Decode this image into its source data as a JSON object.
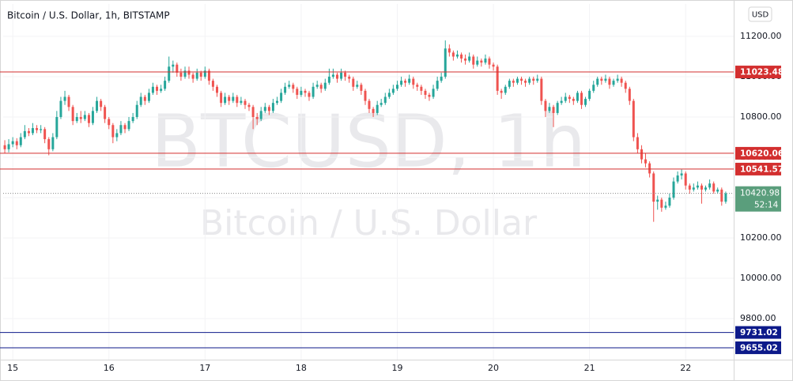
{
  "chart_data": {
    "type": "candlestick",
    "title": "Bitcoin / U.S. Dollar, 1h, BITSTAMP",
    "currency": "USD",
    "watermark": "BTCUSD, 1h",
    "watermark_subtitle": "Bitcoin / U.S. Dollar",
    "up_color": "#26a69a",
    "down_color": "#ef5350",
    "grid": true,
    "xlim": [
      14.9,
      22.5
    ],
    "ylim": [
      9596,
      11361
    ],
    "xticks": [
      15,
      16,
      17,
      18,
      19,
      20,
      21,
      22
    ],
    "yticks": [
      {
        "value": 9800,
        "label": "9800.00"
      },
      {
        "value": 10000,
        "label": "10000.00"
      },
      {
        "value": 10200,
        "label": "10200.00"
      },
      {
        "value": 10400,
        "label": "10400.00"
      },
      {
        "value": 10600,
        "label": "10600.00"
      },
      {
        "value": 10800,
        "label": "10800.00"
      },
      {
        "value": 11000,
        "label": "11000.00"
      },
      {
        "value": 11200,
        "label": "11200.00"
      }
    ],
    "levels": [
      {
        "value": 11023.48,
        "color": "#d32f2f"
      },
      {
        "value": 10620.06,
        "color": "#d32f2f"
      },
      {
        "value": 10541.57,
        "color": "#d32f2f"
      },
      {
        "value": 9731.02,
        "color": "#0d1a8a"
      },
      {
        "value": 9655.02,
        "color": "#0d1a8a"
      }
    ],
    "last": {
      "value": 10420.98,
      "color": "#5a9e7c"
    },
    "countdown": "52:14",
    "x": [
      14.917,
      14.958,
      15,
      15.042,
      15.083,
      15.125,
      15.167,
      15.208,
      15.25,
      15.292,
      15.333,
      15.375,
      15.417,
      15.458,
      15.5,
      15.542,
      15.583,
      15.625,
      15.667,
      15.708,
      15.75,
      15.792,
      15.833,
      15.875,
      15.917,
      15.958,
      16,
      16.042,
      16.083,
      16.125,
      16.167,
      16.208,
      16.25,
      16.292,
      16.333,
      16.375,
      16.417,
      16.458,
      16.5,
      16.542,
      16.583,
      16.625,
      16.667,
      16.708,
      16.75,
      16.792,
      16.833,
      16.875,
      16.917,
      16.958,
      17,
      17.042,
      17.083,
      17.125,
      17.167,
      17.208,
      17.25,
      17.292,
      17.333,
      17.375,
      17.417,
      17.458,
      17.5,
      17.542,
      17.583,
      17.625,
      17.667,
      17.708,
      17.75,
      17.792,
      17.833,
      17.875,
      17.917,
      17.958,
      18,
      18.042,
      18.083,
      18.125,
      18.167,
      18.208,
      18.25,
      18.292,
      18.333,
      18.375,
      18.417,
      18.458,
      18.5,
      18.542,
      18.583,
      18.625,
      18.667,
      18.708,
      18.75,
      18.792,
      18.833,
      18.875,
      18.917,
      18.958,
      19,
      19.042,
      19.083,
      19.125,
      19.167,
      19.208,
      19.25,
      19.292,
      19.333,
      19.375,
      19.417,
      19.458,
      19.5,
      19.542,
      19.583,
      19.625,
      19.667,
      19.708,
      19.75,
      19.792,
      19.833,
      19.875,
      19.917,
      19.958,
      20,
      20.042,
      20.083,
      20.125,
      20.167,
      20.208,
      20.25,
      20.292,
      20.333,
      20.375,
      20.417,
      20.458,
      20.5,
      20.542,
      20.583,
      20.625,
      20.667,
      20.708,
      20.75,
      20.792,
      20.833,
      20.875,
      20.917,
      20.958,
      21,
      21.042,
      21.083,
      21.125,
      21.167,
      21.208,
      21.25,
      21.292,
      21.333,
      21.375,
      21.417,
      21.458,
      21.5,
      21.542,
      21.583,
      21.625,
      21.667,
      21.708,
      21.75,
      21.792,
      21.833,
      21.875,
      21.917,
      21.958,
      22,
      22.042,
      22.083,
      22.125,
      22.167,
      22.208,
      22.25,
      22.292,
      22.333,
      22.375,
      22.417
    ],
    "candles": [
      [
        10660,
        10685,
        10620,
        10640
      ],
      [
        10640,
        10690,
        10625,
        10665
      ],
      [
        10665,
        10700,
        10650,
        10680
      ],
      [
        10680,
        10695,
        10640,
        10660
      ],
      [
        10660,
        10720,
        10650,
        10700
      ],
      [
        10700,
        10760,
        10690,
        10730
      ],
      [
        10730,
        10745,
        10705,
        10720
      ],
      [
        10720,
        10770,
        10710,
        10745
      ],
      [
        10745,
        10760,
        10720,
        10735
      ],
      [
        10735,
        10760,
        10720,
        10740
      ],
      [
        10740,
        10750,
        10670,
        10690
      ],
      [
        10690,
        10700,
        10610,
        10640
      ],
      [
        10640,
        10720,
        10630,
        10700
      ],
      [
        10700,
        10830,
        10690,
        10800
      ],
      [
        10800,
        10900,
        10790,
        10880
      ],
      [
        10880,
        10930,
        10860,
        10900
      ],
      [
        10900,
        10910,
        10830,
        10850
      ],
      [
        10850,
        10860,
        10760,
        10780
      ],
      [
        10780,
        10820,
        10770,
        10800
      ],
      [
        10800,
        10830,
        10770,
        10790
      ],
      [
        10790,
        10830,
        10780,
        10810
      ],
      [
        10810,
        10820,
        10750,
        10770
      ],
      [
        10770,
        10850,
        10760,
        10830
      ],
      [
        10830,
        10900,
        10820,
        10880
      ],
      [
        10880,
        10890,
        10830,
        10850
      ],
      [
        10850,
        10860,
        10770,
        10790
      ],
      [
        10790,
        10800,
        10740,
        10760
      ],
      [
        10760,
        10770,
        10670,
        10700
      ],
      [
        10700,
        10740,
        10680,
        10720
      ],
      [
        10720,
        10780,
        10710,
        10760
      ],
      [
        10760,
        10770,
        10720,
        10740
      ],
      [
        10740,
        10800,
        10730,
        10780
      ],
      [
        10780,
        10820,
        10770,
        10800
      ],
      [
        10800,
        10880,
        10790,
        10860
      ],
      [
        10860,
        10920,
        10850,
        10900
      ],
      [
        10900,
        10910,
        10860,
        10880
      ],
      [
        10880,
        10940,
        10870,
        10920
      ],
      [
        10920,
        10970,
        10910,
        10950
      ],
      [
        10950,
        10960,
        10910,
        10930
      ],
      [
        10930,
        10960,
        10920,
        10940
      ],
      [
        10940,
        11000,
        10930,
        10980
      ],
      [
        10980,
        11100,
        10970,
        11050
      ],
      [
        11050,
        11080,
        11020,
        11060
      ],
      [
        11060,
        11070,
        11000,
        11020
      ],
      [
        11020,
        11040,
        10980,
        11000
      ],
      [
        11000,
        11050,
        10990,
        11030
      ],
      [
        11030,
        11050,
        10990,
        11010
      ],
      [
        11010,
        11020,
        10970,
        10990
      ],
      [
        10990,
        11040,
        10980,
        11020
      ],
      [
        11020,
        11030,
        10980,
        11000
      ],
      [
        11000,
        11050,
        10990,
        11030
      ],
      [
        11030,
        11040,
        10960,
        10980
      ],
      [
        10980,
        10990,
        10930,
        10950
      ],
      [
        10950,
        10960,
        10900,
        10920
      ],
      [
        10920,
        10930,
        10850,
        10870
      ],
      [
        10870,
        10920,
        10860,
        10900
      ],
      [
        10900,
        10910,
        10860,
        10880
      ],
      [
        10880,
        10920,
        10870,
        10900
      ],
      [
        10900,
        10910,
        10850,
        10870
      ],
      [
        10870,
        10900,
        10860,
        10880
      ],
      [
        10880,
        10890,
        10840,
        10860
      ],
      [
        10860,
        10870,
        10830,
        10850
      ],
      [
        10850,
        10860,
        10740,
        10800
      ],
      [
        10800,
        10820,
        10760,
        10790
      ],
      [
        10790,
        10850,
        10780,
        10830
      ],
      [
        10830,
        10870,
        10820,
        10850
      ],
      [
        10850,
        10860,
        10810,
        10830
      ],
      [
        10830,
        10890,
        10820,
        10870
      ],
      [
        10870,
        10900,
        10860,
        10880
      ],
      [
        10880,
        10940,
        10870,
        10920
      ],
      [
        10920,
        10970,
        10910,
        10950
      ],
      [
        10950,
        10980,
        10940,
        10960
      ],
      [
        10960,
        10970,
        10920,
        10940
      ],
      [
        10940,
        10950,
        10890,
        10910
      ],
      [
        10910,
        10950,
        10900,
        10930
      ],
      [
        10930,
        10940,
        10900,
        10920
      ],
      [
        10920,
        10930,
        10880,
        10900
      ],
      [
        10900,
        10970,
        10890,
        10950
      ],
      [
        10950,
        10980,
        10940,
        10960
      ],
      [
        10960,
        10970,
        10920,
        10940
      ],
      [
        10940,
        10990,
        10930,
        10970
      ],
      [
        10970,
        11040,
        10960,
        11000
      ],
      [
        11000,
        11040,
        10990,
        11010
      ],
      [
        11010,
        11020,
        10970,
        10990
      ],
      [
        10990,
        11040,
        10980,
        11020
      ],
      [
        11020,
        11030,
        10980,
        11000
      ],
      [
        11000,
        11010,
        10970,
        10990
      ],
      [
        10990,
        11000,
        10930,
        10950
      ],
      [
        10950,
        10980,
        10940,
        10960
      ],
      [
        10960,
        10970,
        10910,
        10930
      ],
      [
        10930,
        10940,
        10860,
        10880
      ],
      [
        10880,
        10890,
        10820,
        10840
      ],
      [
        10840,
        10850,
        10800,
        10820
      ],
      [
        10820,
        10880,
        10810,
        10860
      ],
      [
        10860,
        10890,
        10850,
        10870
      ],
      [
        10870,
        10920,
        10860,
        10900
      ],
      [
        10900,
        10940,
        10890,
        10920
      ],
      [
        10920,
        10960,
        10910,
        10940
      ],
      [
        10940,
        10980,
        10930,
        10960
      ],
      [
        10960,
        11000,
        10950,
        10980
      ],
      [
        10980,
        10990,
        10950,
        10970
      ],
      [
        10970,
        11010,
        10960,
        10990
      ],
      [
        10990,
        11000,
        10940,
        10960
      ],
      [
        10960,
        10970,
        10930,
        10950
      ],
      [
        10950,
        10960,
        10910,
        10930
      ],
      [
        10930,
        10940,
        10890,
        10910
      ],
      [
        10910,
        10920,
        10880,
        10900
      ],
      [
        10900,
        10960,
        10890,
        10940
      ],
      [
        10940,
        11000,
        10930,
        10980
      ],
      [
        10980,
        11020,
        10970,
        11000
      ],
      [
        11000,
        11180,
        10990,
        11140
      ],
      [
        11140,
        11160,
        11100,
        11120
      ],
      [
        11120,
        11130,
        11080,
        11100
      ],
      [
        11100,
        11130,
        11090,
        11110
      ],
      [
        11110,
        11120,
        11070,
        11090
      ],
      [
        11090,
        11110,
        11060,
        11080
      ],
      [
        11080,
        11120,
        11070,
        11100
      ],
      [
        11100,
        11110,
        11040,
        11060
      ],
      [
        11060,
        11100,
        11050,
        11080
      ],
      [
        11080,
        11090,
        11050,
        11070
      ],
      [
        11070,
        11110,
        11060,
        11090
      ],
      [
        11090,
        11100,
        11040,
        11060
      ],
      [
        11060,
        11070,
        11030,
        11050
      ],
      [
        11050,
        11060,
        10910,
        10930
      ],
      [
        10930,
        10940,
        10890,
        10920
      ],
      [
        10920,
        10960,
        10910,
        10950
      ],
      [
        10950,
        10990,
        10940,
        10980
      ],
      [
        10980,
        10990,
        10950,
        10970
      ],
      [
        10970,
        11000,
        10960,
        10990
      ],
      [
        10990,
        11000,
        10960,
        10980
      ],
      [
        10980,
        10990,
        10950,
        10970
      ],
      [
        10970,
        11000,
        10960,
        10990
      ],
      [
        10990,
        11000,
        10960,
        10980
      ],
      [
        10980,
        11010,
        10970,
        10990
      ],
      [
        10990,
        11000,
        10860,
        10880
      ],
      [
        10880,
        10890,
        10800,
        10830
      ],
      [
        10830,
        10870,
        10820,
        10850
      ],
      [
        10850,
        10860,
        10750,
        10820
      ],
      [
        10820,
        10880,
        10810,
        10870
      ],
      [
        10870,
        10900,
        10860,
        10880
      ],
      [
        10880,
        10920,
        10870,
        10900
      ],
      [
        10900,
        10910,
        10870,
        10890
      ],
      [
        10890,
        10900,
        10860,
        10880
      ],
      [
        10880,
        10930,
        10870,
        10920
      ],
      [
        10920,
        10930,
        10840,
        10860
      ],
      [
        10860,
        10900,
        10850,
        10890
      ],
      [
        10890,
        10940,
        10880,
        10930
      ],
      [
        10930,
        10980,
        10920,
        10960
      ],
      [
        10960,
        11000,
        10950,
        10990
      ],
      [
        10990,
        11000,
        10960,
        10980
      ],
      [
        10980,
        11010,
        10970,
        10990
      ],
      [
        10990,
        11000,
        10940,
        10960
      ],
      [
        10960,
        10990,
        10950,
        10980
      ],
      [
        10980,
        11010,
        10970,
        10990
      ],
      [
        10990,
        11000,
        10950,
        10970
      ],
      [
        10970,
        10980,
        10920,
        10940
      ],
      [
        10940,
        10950,
        10860,
        10880
      ],
      [
        10880,
        10890,
        10680,
        10700
      ],
      [
        10700,
        10720,
        10620,
        10640
      ],
      [
        10640,
        10660,
        10570,
        10590
      ],
      [
        10590,
        10620,
        10550,
        10570
      ],
      [
        10570,
        10580,
        10500,
        10520
      ],
      [
        10520,
        10530,
        10280,
        10380
      ],
      [
        10380,
        10410,
        10340,
        10390
      ],
      [
        10390,
        10400,
        10330,
        10350
      ],
      [
        10350,
        10380,
        10340,
        10360
      ],
      [
        10360,
        10420,
        10350,
        10400
      ],
      [
        10400,
        10500,
        10390,
        10480
      ],
      [
        10480,
        10530,
        10470,
        10510
      ],
      [
        10510,
        10540,
        10490,
        10520
      ],
      [
        10520,
        10530,
        10440,
        10460
      ],
      [
        10460,
        10470,
        10420,
        10440
      ],
      [
        10440,
        10470,
        10430,
        10450
      ],
      [
        10450,
        10480,
        10440,
        10460
      ],
      [
        10460,
        10470,
        10370,
        10440
      ],
      [
        10440,
        10460,
        10430,
        10450
      ],
      [
        10450,
        10490,
        10440,
        10470
      ],
      [
        10470,
        10480,
        10420,
        10430
      ],
      [
        10430,
        10450,
        10420,
        10440
      ],
      [
        10440,
        10450,
        10360,
        10380
      ],
      [
        10380,
        10430,
        10370,
        10420.98
      ]
    ]
  }
}
